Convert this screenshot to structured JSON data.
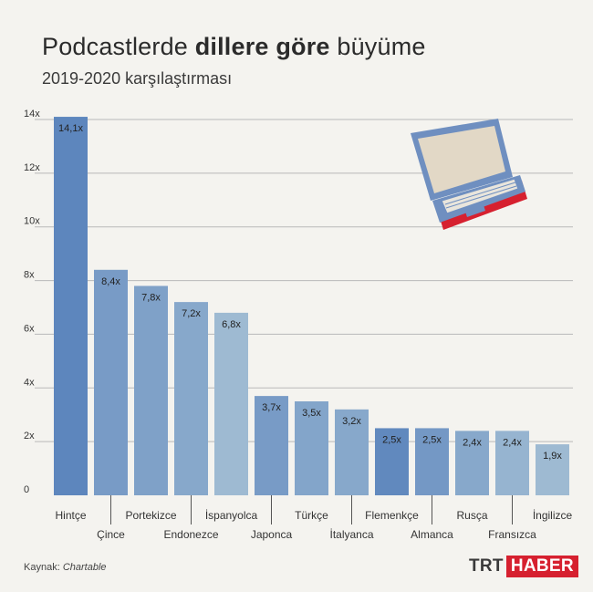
{
  "header": {
    "title_part1": "Podcastlerde",
    "title_bold": "dillere göre",
    "title_part2": "büyüme",
    "subtitle": "2019-2020 karşılaştırması"
  },
  "footer": {
    "source_label": "Kaynak:",
    "source_name": "Chartable",
    "brand_trt": "TRT",
    "brand_haber": "HABER"
  },
  "colors": {
    "background": "#f4f3ef",
    "bar_dark": "#5d86bd",
    "bar_light": "#a9c3d6",
    "brand_red": "#d6202f",
    "laptop_blue": "#6f8fc0",
    "laptop_screen": "#e2d8c6",
    "laptop_base": "#d6202f"
  },
  "chart_data": {
    "type": "bar",
    "title": "Podcastlerde dillere göre büyüme",
    "subtitle": "2019-2020 karşılaştırması",
    "xlabel": "",
    "ylabel": "",
    "ylim": [
      0,
      14
    ],
    "yticks": [
      0,
      2,
      4,
      6,
      8,
      10,
      12,
      14
    ],
    "ytick_labels": [
      "0",
      "2x",
      "4x",
      "6x",
      "8x",
      "10x",
      "12x",
      "14x"
    ],
    "grid": true,
    "categories": [
      "Hintçe",
      "Çince",
      "Portekizce",
      "Endonezce",
      "İspanyolca",
      "Japonca",
      "Türkçe",
      "İtalyanca",
      "Flemenkçe",
      "Almanca",
      "Rusça",
      "Fransızca",
      "İngilizce"
    ],
    "values": [
      14.1,
      8.4,
      7.8,
      7.2,
      6.8,
      3.7,
      3.5,
      3.2,
      2.5,
      2.5,
      2.4,
      2.4,
      1.9
    ],
    "value_labels": [
      "14,1x",
      "8,4x",
      "7,8x",
      "7,2x",
      "6,8x",
      "3,7x",
      "3,5x",
      "3,2x",
      "2,5x",
      "2,5x",
      "2,4x",
      "2,4x",
      "1,9x"
    ]
  }
}
